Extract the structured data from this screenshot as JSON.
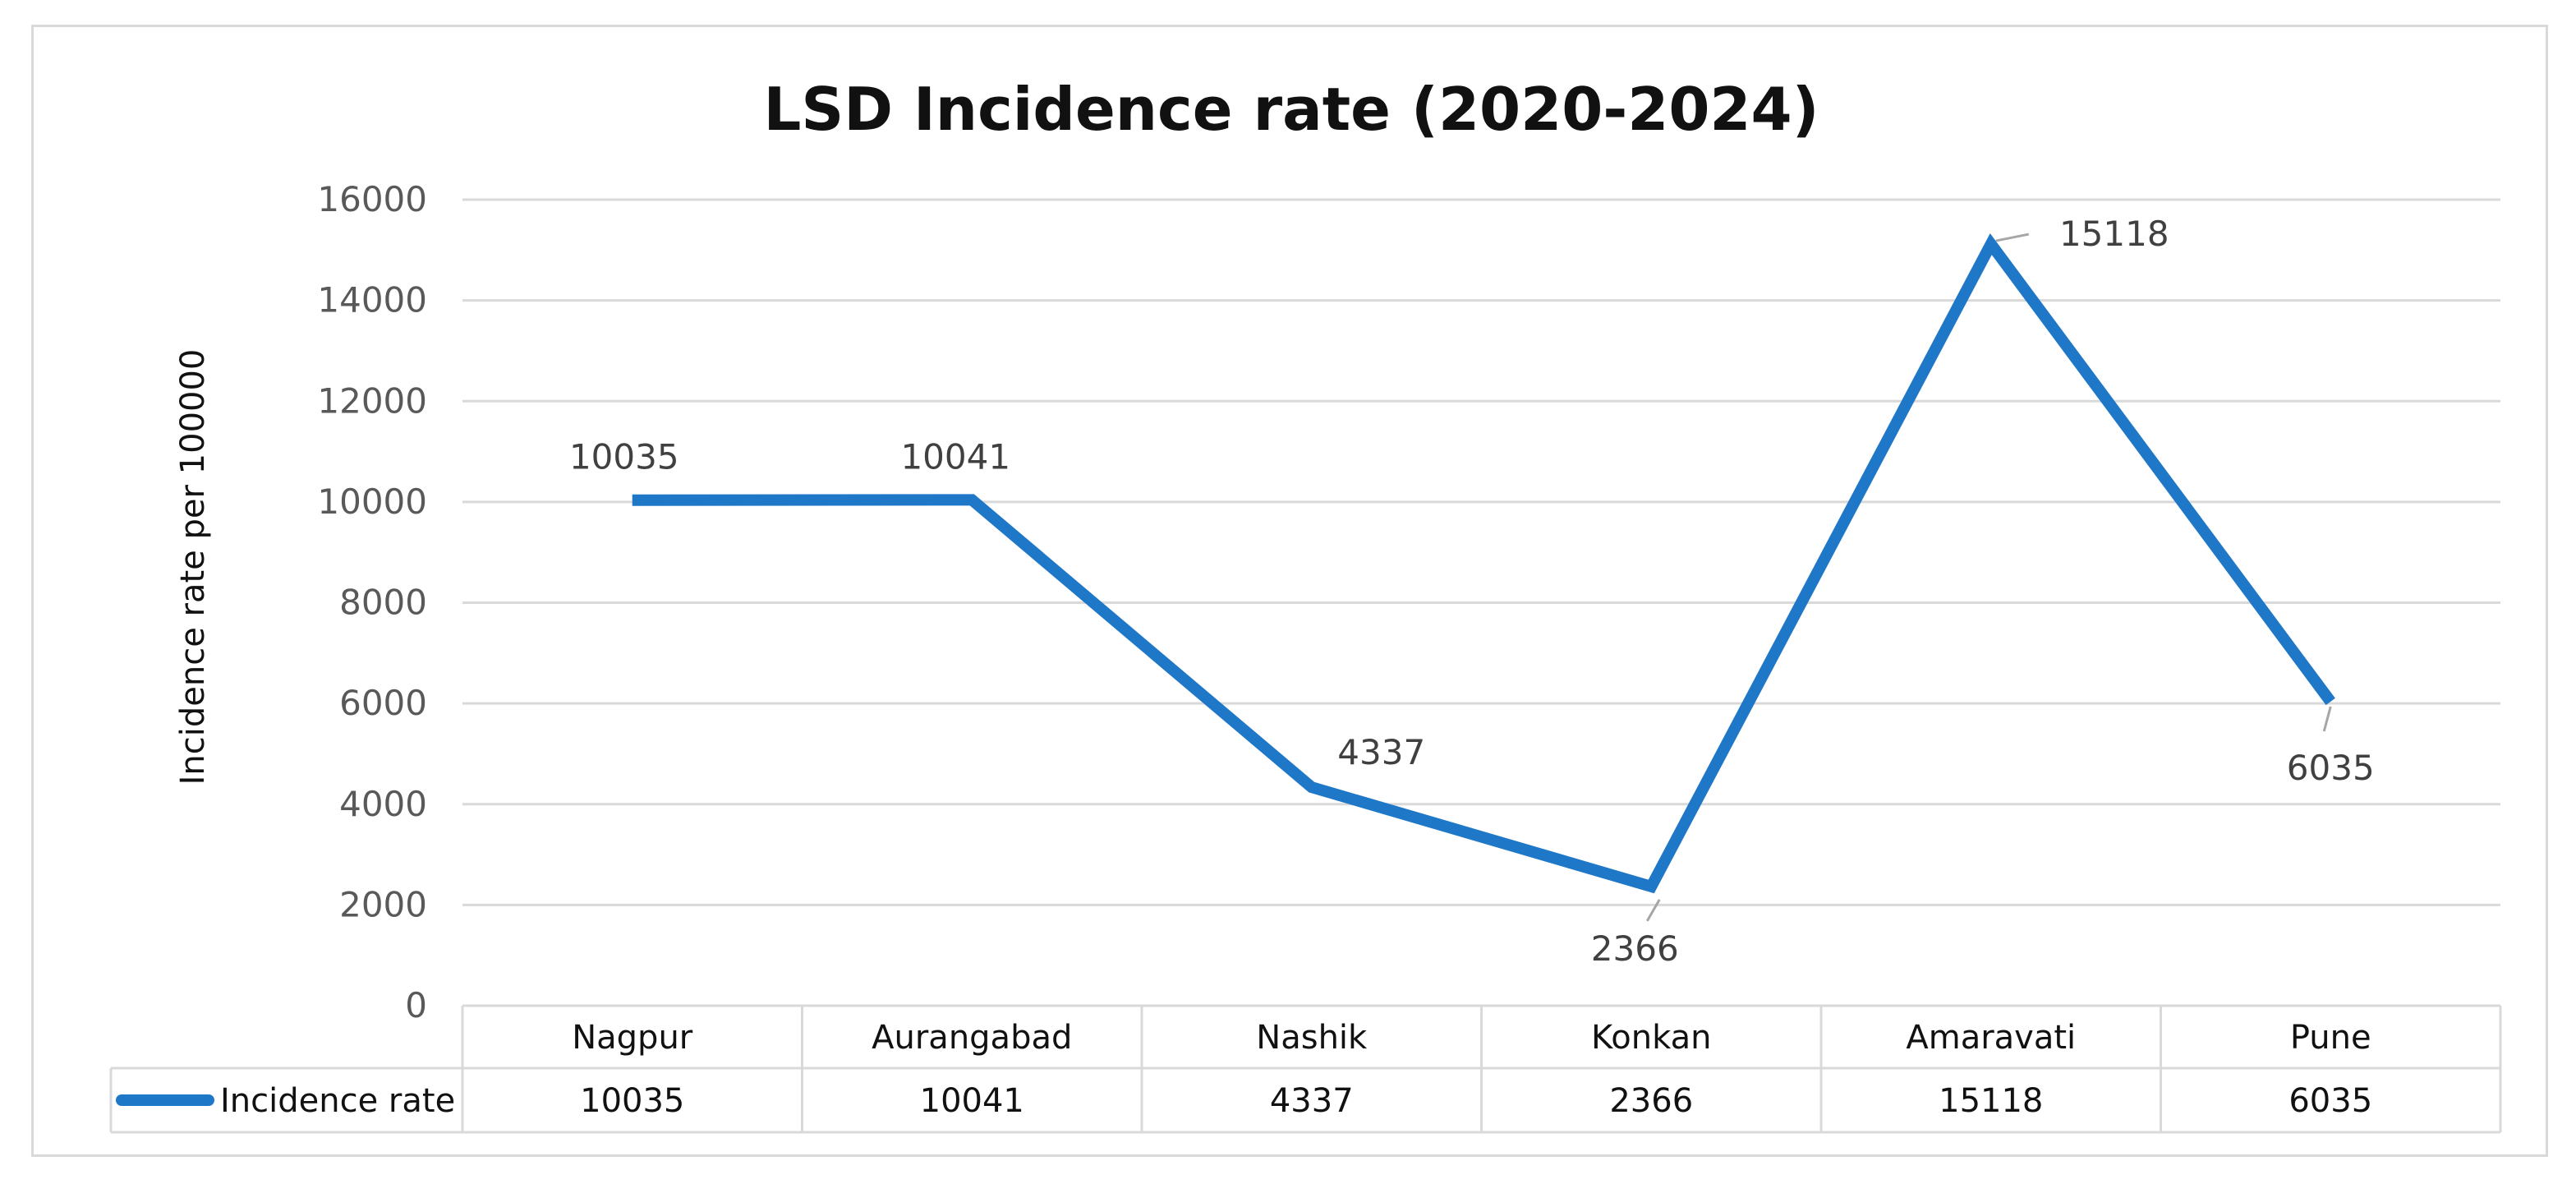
{
  "chart_data": {
    "type": "line",
    "title": "LSD Incidence rate (2020-2024)",
    "xlabel": "",
    "ylabel": "Incidence rate per 100000",
    "ylim": [
      0,
      16000
    ],
    "yticks": [
      0,
      2000,
      4000,
      6000,
      8000,
      10000,
      12000,
      14000,
      16000
    ],
    "ytick_labels": [
      "0",
      "2000",
      "4000",
      "6000",
      "8000",
      "10000",
      "12000",
      "14000",
      "16000"
    ],
    "categories": [
      "Nagpur",
      "Aurangabad",
      "Nashik",
      "Konkan",
      "Amaravati",
      "Pune"
    ],
    "series": [
      {
        "name": "Incidence rate",
        "color": "#1f77c8",
        "values": [
          10035,
          10041,
          4337,
          2366,
          15118,
          6035
        ],
        "labels": [
          "10035",
          "10041",
          "4337",
          "2366",
          "15118",
          "6035"
        ]
      }
    ],
    "grid": true,
    "data_table": true,
    "legend": "data-table-left"
  }
}
